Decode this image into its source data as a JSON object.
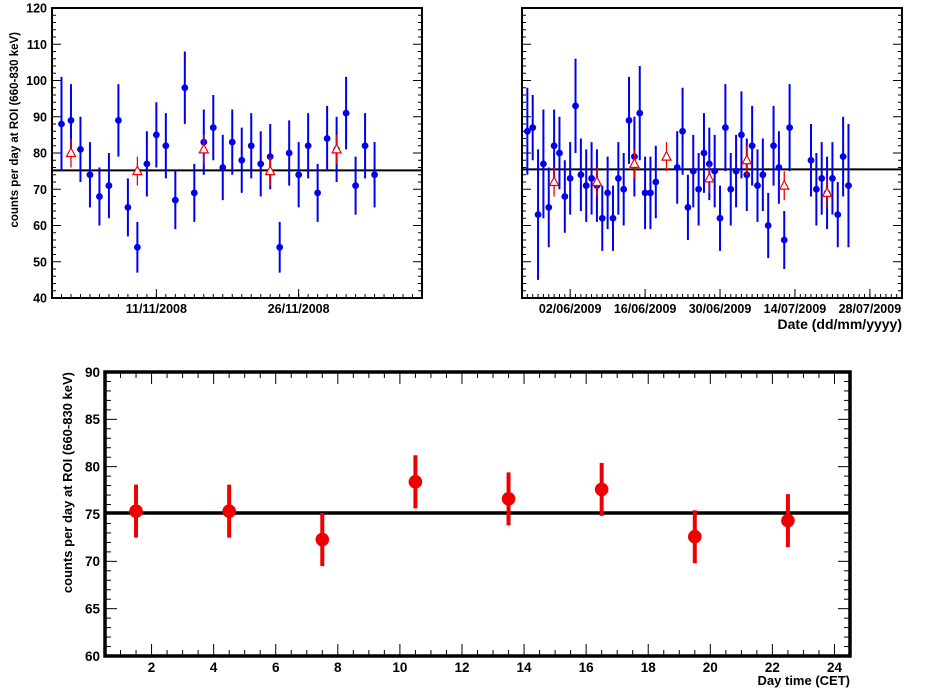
{
  "colors": {
    "blue": "#0000ee",
    "red": "#ee0000",
    "axis": "#000000"
  },
  "chart_data": [
    {
      "type": "scatter",
      "panel": "top-left",
      "title": "",
      "xlabel": "",
      "ylabel": "counts per day at ROI (660-830 keV)",
      "x_unit": "date",
      "xlim": [
        "2008-10-31",
        "2008-12-09"
      ],
      "ylim": [
        40,
        120
      ],
      "y_ticks": [
        "40",
        "50",
        "60",
        "70",
        "80",
        "90",
        "100",
        "110",
        "120"
      ],
      "x_ticks": [
        {
          "label": "11/11/2008",
          "x": "2008-11-11"
        },
        {
          "label": "26/11/2008",
          "x": "2008-11-26"
        }
      ],
      "reference_line": 75.2,
      "grid": false,
      "series": [
        {
          "marker": "blue-filled-circle",
          "error_type": "vertical",
          "points": [
            [
              "2008-11-01",
              88,
              13
            ],
            [
              "2008-11-02",
              89,
              10
            ],
            [
              "2008-11-03",
              81,
              9
            ],
            [
              "2008-11-04",
              74,
              9
            ],
            [
              "2008-11-05",
              68,
              8
            ],
            [
              "2008-11-06",
              71,
              9
            ],
            [
              "2008-11-07",
              89,
              10
            ],
            [
              "2008-11-08",
              65,
              8
            ],
            [
              "2008-11-09",
              54,
              7
            ],
            [
              "2008-11-10",
              77,
              9
            ],
            [
              "2008-11-11",
              85,
              9
            ],
            [
              "2008-11-12",
              82,
              9
            ],
            [
              "2008-11-13",
              67,
              8
            ],
            [
              "2008-11-14",
              98,
              10
            ],
            [
              "2008-11-15",
              69,
              8
            ],
            [
              "2008-11-16",
              83,
              9
            ],
            [
              "2008-11-17",
              87,
              9
            ],
            [
              "2008-11-18",
              76,
              9
            ],
            [
              "2008-11-19",
              83,
              9
            ],
            [
              "2008-11-20",
              78,
              9
            ],
            [
              "2008-11-21",
              82,
              9
            ],
            [
              "2008-11-22",
              77,
              9
            ],
            [
              "2008-11-23",
              79,
              9
            ],
            [
              "2008-11-24",
              54,
              7
            ],
            [
              "2008-11-25",
              80,
              9
            ],
            [
              "2008-11-26",
              74,
              9
            ],
            [
              "2008-11-27",
              82,
              9
            ],
            [
              "2008-11-28",
              69,
              8
            ],
            [
              "2008-11-29",
              84,
              9
            ],
            [
              "2008-11-30",
              81,
              9
            ],
            [
              "2008-12-01",
              91,
              10
            ],
            [
              "2008-12-02",
              71,
              8
            ],
            [
              "2008-12-03",
              82,
              9
            ],
            [
              "2008-12-04",
              74,
              9
            ]
          ]
        },
        {
          "marker": "red-open-triangle",
          "error_type": "vertical",
          "points": [
            [
              "2008-11-02",
              80,
              4
            ],
            [
              "2008-11-09",
              75,
              4
            ],
            [
              "2008-11-16",
              81,
              4
            ],
            [
              "2008-11-23",
              75,
              4
            ],
            [
              "2008-11-30",
              81,
              4
            ]
          ]
        }
      ]
    },
    {
      "type": "scatter",
      "panel": "top-right",
      "title": "",
      "xlabel": "Date (dd/mm/yyyy)",
      "ylabel": "",
      "x_unit": "date",
      "xlim": [
        "2009-05-24",
        "2009-08-03"
      ],
      "ylim": [
        40,
        120
      ],
      "x_ticks": [
        {
          "label": "02/06/2009",
          "x": "2009-06-02"
        },
        {
          "label": "16/06/2009",
          "x": "2009-06-16"
        },
        {
          "label": "30/06/2009",
          "x": "2009-06-30"
        },
        {
          "label": "14/07/2009",
          "x": "2009-07-14"
        },
        {
          "label": "28/07/2009",
          "x": "2009-07-28"
        }
      ],
      "reference_line": 75.5,
      "grid": false,
      "series": [
        {
          "marker": "blue-filled-circle",
          "error_type": "vertical",
          "points": [
            [
              "2009-05-25",
              86,
              12
            ],
            [
              "2009-05-26",
              87,
              9
            ],
            [
              "2009-05-27",
              63,
              18
            ],
            [
              "2009-05-28",
              77,
              15
            ],
            [
              "2009-05-29",
              65,
              11
            ],
            [
              "2009-05-30",
              82,
              10
            ],
            [
              "2009-05-31",
              80,
              10
            ],
            [
              "2009-06-01",
              68,
              10
            ],
            [
              "2009-06-02",
              73,
              10
            ],
            [
              "2009-06-03",
              93,
              13
            ],
            [
              "2009-06-04",
              74,
              10
            ],
            [
              "2009-06-05",
              71,
              10
            ],
            [
              "2009-06-06",
              73,
              10
            ],
            [
              "2009-06-07",
              71,
              10
            ],
            [
              "2009-06-08",
              62,
              9
            ],
            [
              "2009-06-09",
              69,
              10
            ],
            [
              "2009-06-10",
              62,
              9
            ],
            [
              "2009-06-11",
              73,
              10
            ],
            [
              "2009-06-12",
              70,
              10
            ],
            [
              "2009-06-13",
              89,
              12
            ],
            [
              "2009-06-14",
              79,
              11
            ],
            [
              "2009-06-15",
              91,
              13
            ],
            [
              "2009-06-16",
              69,
              10
            ],
            [
              "2009-06-17",
              69,
              10
            ],
            [
              "2009-06-18",
              72,
              10
            ],
            [
              "2009-06-22",
              76,
              10
            ],
            [
              "2009-06-23",
              86,
              12
            ],
            [
              "2009-06-24",
              65,
              9
            ],
            [
              "2009-06-25",
              75,
              10
            ],
            [
              "2009-06-26",
              70,
              10
            ],
            [
              "2009-06-27",
              80,
              11
            ],
            [
              "2009-06-28",
              77,
              10
            ],
            [
              "2009-06-29",
              75,
              10
            ],
            [
              "2009-06-30",
              62,
              9
            ],
            [
              "2009-07-01",
              87,
              12
            ],
            [
              "2009-07-02",
              70,
              10
            ],
            [
              "2009-07-03",
              75,
              10
            ],
            [
              "2009-07-04",
              85,
              12
            ],
            [
              "2009-07-05",
              74,
              10
            ],
            [
              "2009-07-06",
              82,
              11
            ],
            [
              "2009-07-07",
              71,
              10
            ],
            [
              "2009-07-08",
              74,
              10
            ],
            [
              "2009-07-09",
              60,
              9
            ],
            [
              "2009-07-10",
              82,
              11
            ],
            [
              "2009-07-11",
              76,
              10
            ],
            [
              "2009-07-12",
              56,
              8
            ],
            [
              "2009-07-13",
              87,
              12
            ],
            [
              "2009-07-17",
              78,
              10
            ],
            [
              "2009-07-18",
              70,
              10
            ],
            [
              "2009-07-19",
              73,
              10
            ],
            [
              "2009-07-20",
              69,
              10
            ],
            [
              "2009-07-21",
              73,
              10
            ],
            [
              "2009-07-22",
              63,
              9
            ],
            [
              "2009-07-23",
              79,
              11
            ],
            [
              "2009-07-24",
              71,
              17
            ]
          ]
        },
        {
          "marker": "red-open-triangle",
          "error_type": "vertical",
          "points": [
            [
              "2009-05-30",
              72,
              4
            ],
            [
              "2009-06-07",
              72,
              4
            ],
            [
              "2009-06-14",
              77,
              4
            ],
            [
              "2009-06-20",
              79,
              4
            ],
            [
              "2009-06-28",
              73,
              4
            ],
            [
              "2009-07-05",
              78,
              4
            ],
            [
              "2009-07-12",
              71,
              4
            ],
            [
              "2009-07-20",
              69,
              4
            ]
          ]
        }
      ]
    },
    {
      "type": "scatter",
      "panel": "bottom",
      "title": "",
      "xlabel": "Day time (CET)",
      "ylabel": "counts per day at ROI (660-830 keV)",
      "xlim": [
        0.5,
        24.5
      ],
      "ylim": [
        60,
        90
      ],
      "x_ticks": [
        "2",
        "4",
        "6",
        "8",
        "10",
        "12",
        "14",
        "16",
        "18",
        "20",
        "22",
        "24"
      ],
      "y_ticks": [
        "60",
        "65",
        "70",
        "75",
        "80",
        "85",
        "90"
      ],
      "reference_line": 75.1,
      "grid": false,
      "series": [
        {
          "marker": "red-filled-circle",
          "error_type": "vertical",
          "points": [
            [
              1.5,
              75.3,
              2.8
            ],
            [
              4.5,
              75.3,
              2.8
            ],
            [
              7.5,
              72.3,
              2.8
            ],
            [
              10.5,
              78.4,
              2.8
            ],
            [
              13.5,
              76.6,
              2.8
            ],
            [
              16.5,
              77.6,
              2.8
            ],
            [
              19.5,
              72.6,
              2.8
            ],
            [
              22.5,
              74.3,
              2.8
            ]
          ]
        }
      ]
    }
  ]
}
